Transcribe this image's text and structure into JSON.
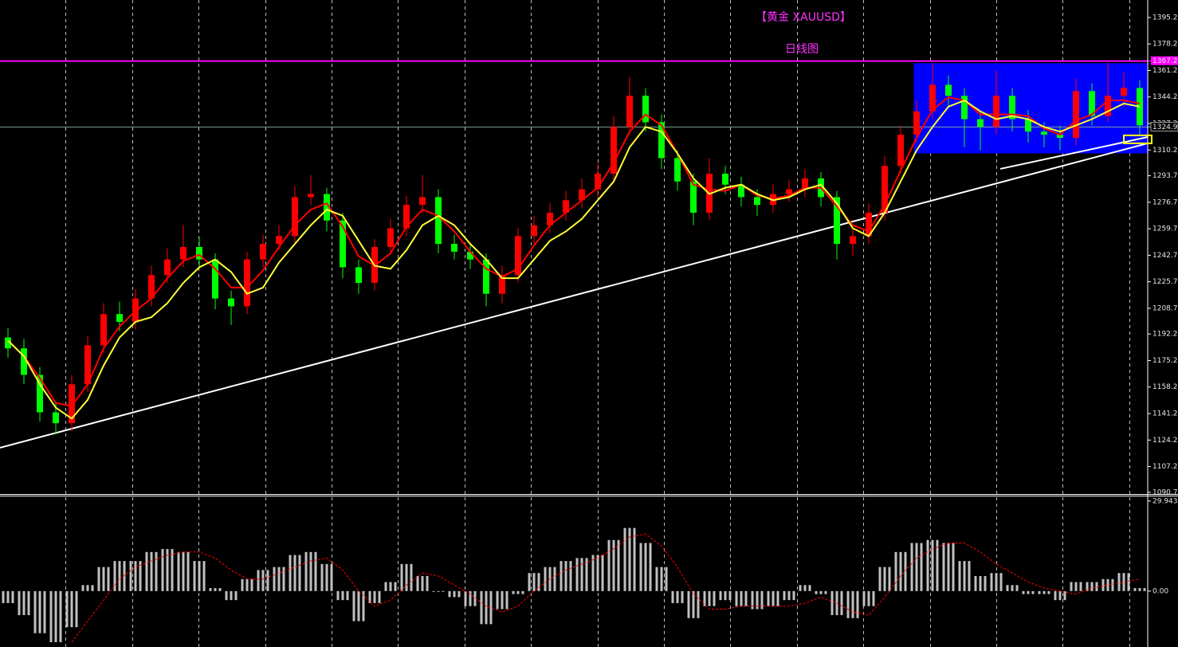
{
  "chart_data": [
    {
      "type": "candlestick",
      "title": "【黄金 XAUUSD】",
      "subtitle": "日线图",
      "title_color": "#ff33ff",
      "up_color": "#ff0000",
      "down_color": "#00ff00",
      "open": [
        1190,
        1183,
        1166,
        1142,
        1135,
        1160,
        1185,
        1205,
        1200,
        1215,
        1230,
        1240,
        1248,
        1240,
        1215,
        1210,
        1240,
        1250,
        1255,
        1280,
        1282,
        1265,
        1235,
        1225,
        1248,
        1260,
        1275,
        1280,
        1250,
        1245,
        1240,
        1218,
        1230,
        1255,
        1262,
        1270,
        1278,
        1285,
        1295,
        1325,
        1345,
        1328,
        1305,
        1290,
        1270,
        1295,
        1288,
        1280,
        1275,
        1282,
        1285,
        1292,
        1280,
        1250,
        1255,
        1270,
        1300,
        1320,
        1335,
        1352,
        1345,
        1330,
        1325,
        1345,
        1330,
        1322,
        1320,
        1318,
        1348,
        1332,
        1345,
        1350
      ],
      "high": [
        1196,
        1189,
        1171,
        1148,
        1166,
        1191,
        1212,
        1213,
        1221,
        1236,
        1247,
        1262,
        1254,
        1244,
        1220,
        1245,
        1256,
        1262,
        1287,
        1294,
        1286,
        1270,
        1240,
        1253,
        1266,
        1281,
        1294,
        1285,
        1256,
        1250,
        1244,
        1236,
        1260,
        1268,
        1276,
        1284,
        1292,
        1302,
        1332,
        1357,
        1350,
        1333,
        1310,
        1295,
        1305,
        1300,
        1293,
        1285,
        1288,
        1291,
        1298,
        1296,
        1284,
        1262,
        1276,
        1306,
        1326,
        1342,
        1366,
        1358,
        1350,
        1335,
        1361,
        1350,
        1336,
        1328,
        1326,
        1356,
        1353,
        1366,
        1360,
        1355
      ],
      "low": [
        1177,
        1160,
        1136,
        1128,
        1130,
        1155,
        1180,
        1194,
        1195,
        1210,
        1225,
        1235,
        1234,
        1208,
        1198,
        1205,
        1235,
        1246,
        1250,
        1275,
        1258,
        1228,
        1218,
        1220,
        1243,
        1255,
        1270,
        1244,
        1240,
        1234,
        1210,
        1212,
        1225,
        1250,
        1257,
        1265,
        1273,
        1280,
        1290,
        1320,
        1322,
        1298,
        1284,
        1262,
        1265,
        1282,
        1274,
        1268,
        1270,
        1277,
        1280,
        1274,
        1240,
        1242,
        1250,
        1265,
        1295,
        1315,
        1330,
        1338,
        1312,
        1310,
        1320,
        1322,
        1315,
        1312,
        1310,
        1313,
        1326,
        1328,
        1338,
        1320
      ],
      "close": [
        1183,
        1166,
        1142,
        1135,
        1160,
        1185,
        1205,
        1200,
        1215,
        1230,
        1240,
        1248,
        1240,
        1215,
        1210,
        1240,
        1250,
        1255,
        1280,
        1282,
        1265,
        1235,
        1225,
        1248,
        1260,
        1275,
        1280,
        1250,
        1245,
        1240,
        1218,
        1230,
        1255,
        1262,
        1270,
        1278,
        1285,
        1295,
        1325,
        1345,
        1328,
        1305,
        1290,
        1270,
        1295,
        1288,
        1280,
        1275,
        1282,
        1285,
        1292,
        1280,
        1250,
        1255,
        1270,
        1300,
        1320,
        1335,
        1352,
        1345,
        1330,
        1325,
        1345,
        1330,
        1322,
        1320,
        1318,
        1348,
        1332,
        1345,
        1350,
        1326
      ],
      "series": [
        {
          "color": "#ff0000",
          "values": [
            1188,
            1178,
            1164,
            1148,
            1146,
            1160,
            1183,
            1197,
            1207,
            1215,
            1228,
            1239,
            1243,
            1234,
            1222,
            1222,
            1233,
            1248,
            1262,
            1272,
            1276,
            1261,
            1242,
            1236,
            1244,
            1261,
            1272,
            1268,
            1258,
            1245,
            1234,
            1229,
            1234,
            1249,
            1262,
            1270,
            1278,
            1286,
            1302,
            1322,
            1333,
            1326,
            1308,
            1288,
            1285,
            1284,
            1288,
            1281,
            1279,
            1281,
            1286,
            1286,
            1274,
            1262,
            1258,
            1275,
            1297,
            1318,
            1336,
            1344,
            1342,
            1333,
            1333,
            1333,
            1332,
            1324,
            1320,
            1329,
            1333,
            1342,
            1342,
            1340
          ]
        },
        {
          "color": "#ffff33",
          "values": [
            1188,
            1178,
            1160,
            1145,
            1138,
            1150,
            1172,
            1190,
            1200,
            1203,
            1212,
            1225,
            1235,
            1240,
            1232,
            1218,
            1222,
            1238,
            1250,
            1262,
            1272,
            1268,
            1252,
            1236,
            1234,
            1246,
            1262,
            1268,
            1262,
            1250,
            1240,
            1228,
            1228,
            1240,
            1252,
            1258,
            1266,
            1278,
            1290,
            1312,
            1325,
            1322,
            1308,
            1292,
            1282,
            1286,
            1288,
            1282,
            1278,
            1280,
            1285,
            1288,
            1276,
            1260,
            1255,
            1270,
            1290,
            1310,
            1325,
            1338,
            1342,
            1335,
            1330,
            1332,
            1330,
            1325,
            1322,
            1326,
            1330,
            1335,
            1340,
            1338
          ]
        }
      ],
      "ylim": [
        1089.6,
        1406.4
      ],
      "yticks": [
        {
          "value": 1395.2,
          "label": "1395.20"
        },
        {
          "value": 1378.2,
          "label": "1378.20"
        },
        {
          "value": 1361.2,
          "label": "1361.20"
        },
        {
          "value": 1344.2,
          "label": "1344.20"
        },
        {
          "value": 1327.2,
          "label": "1327.20"
        },
        {
          "value": 1310.2,
          "label": "1310.20"
        },
        {
          "value": 1293.7,
          "label": "1293.70"
        },
        {
          "value": 1276.7,
          "label": "1276.70"
        },
        {
          "value": 1259.7,
          "label": "1259.70"
        },
        {
          "value": 1242.7,
          "label": "1242.70"
        },
        {
          "value": 1225.7,
          "label": "1225.70"
        },
        {
          "value": 1208.7,
          "label": "1208.70"
        },
        {
          "value": 1192.2,
          "label": "1192.20"
        },
        {
          "value": 1175.2,
          "label": "1175.20"
        },
        {
          "value": 1158.2,
          "label": "1158.20"
        },
        {
          "value": 1141.2,
          "label": "1141.20"
        },
        {
          "value": 1124.2,
          "label": "1124.20"
        },
        {
          "value": 1107.2,
          "label": "1107.20"
        },
        {
          "value": 1090.7,
          "label": "1090.70"
        }
      ],
      "hlines": [
        {
          "value": 1367.23,
          "label": "1367.23",
          "color": "#ff00ff"
        },
        {
          "value": 1324.96,
          "label": "1324.96",
          "color": "#7f9fa0"
        }
      ],
      "trendlines": [
        {
          "x": [
            -0.5,
            71.5
          ],
          "y": [
            1119.3,
            1314.5
          ],
          "color": "#ffffff"
        },
        {
          "x": [
            62.25,
            71.5
          ],
          "y": [
            1298.1,
            1318.5
          ],
          "color": "#ffffff"
        }
      ],
      "boxes": [
        {
          "x": [
            56.85,
            71.5
          ],
          "y": [
            1308.3,
            1365.6
          ],
          "color": "#0000ff",
          "fill": true
        },
        {
          "x": [
            70,
            71.75
          ],
          "y": [
            1314.5,
            1319.6
          ],
          "color": "#ffff00",
          "fill": false
        }
      ]
    },
    {
      "type": "macd",
      "values": [
        -4,
        -8,
        -14,
        -17,
        -12,
        2,
        8,
        10,
        10,
        13,
        14,
        13,
        10,
        1,
        -3,
        4,
        7,
        8,
        12,
        13,
        9,
        -3,
        -10,
        -4,
        3,
        9,
        5,
        0,
        -2,
        -5,
        -11,
        -6,
        -1,
        6,
        8,
        10,
        11,
        12,
        17,
        21,
        16,
        8,
        -4,
        -9,
        -5,
        -3,
        -5,
        -6,
        -5,
        -3,
        2,
        -1,
        -8,
        -9,
        -5,
        8,
        13,
        16,
        17,
        16,
        10,
        5,
        6,
        2,
        -1,
        -1,
        -3,
        3,
        3,
        4,
        6,
        1
      ],
      "color": "#c0c0c0",
      "signal": {
        "color": "#ff0000",
        "values": [
          null,
          null,
          null,
          null,
          -17,
          -10,
          -3,
          4,
          8,
          10,
          12,
          13,
          13,
          11,
          7,
          4,
          4,
          6,
          8,
          10,
          11,
          7,
          0,
          -5,
          -3,
          2,
          6,
          5,
          2,
          -1,
          -5,
          -7,
          -5,
          0,
          4,
          7,
          9,
          11,
          14,
          18,
          19,
          15,
          8,
          -1,
          -6,
          -6,
          -5,
          -5,
          -5,
          -5,
          -4,
          -2,
          -4,
          -7,
          -8,
          -2,
          5,
          11,
          14,
          16,
          16,
          13,
          9,
          6,
          3,
          1,
          0,
          -1,
          1,
          2,
          3,
          4
        ]
      },
      "ylim": [
        -18.6,
        31.5
      ],
      "yticks": [
        {
          "value": 29.943,
          "label": "29.943"
        },
        {
          "value": 0,
          "label": "0.00"
        }
      ]
    }
  ]
}
